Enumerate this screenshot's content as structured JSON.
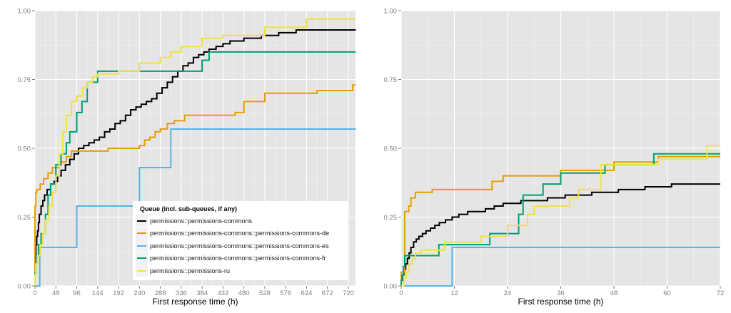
{
  "chart_data": [
    {
      "type": "line",
      "step": true,
      "title": "",
      "xlabel": "First response time (h)",
      "ylabel": "",
      "xlim": [
        0,
        737
      ],
      "ylim": [
        0,
        1
      ],
      "xticks": [
        0,
        48,
        96,
        144,
        192,
        240,
        288,
        336,
        384,
        432,
        480,
        528,
        576,
        624,
        672,
        720
      ],
      "yticks": [
        0,
        0.25,
        0.5,
        0.75,
        1.0
      ],
      "ytick_labels": [
        "0.00",
        "0.25",
        "0.50",
        "0.75",
        "1.00"
      ],
      "grid": true,
      "legend": {
        "position": "bottom-center-inside",
        "title": "Queue (incl. sub-queues, if any)"
      },
      "series": [
        {
          "name": "permissions::permissions-commons",
          "color": "#000000",
          "x": [
            0,
            2,
            4,
            6,
            8,
            10,
            14,
            18,
            22,
            28,
            36,
            44,
            52,
            60,
            70,
            80,
            90,
            100,
            112,
            124,
            136,
            148,
            160,
            172,
            184,
            196,
            208,
            220,
            232,
            244,
            256,
            268,
            280,
            292,
            304,
            316,
            328,
            340,
            352,
            364,
            376,
            388,
            400,
            416,
            432,
            448,
            464,
            480,
            500,
            520,
            540,
            560,
            580,
            600,
            737
          ],
          "values": [
            0.1,
            0.15,
            0.18,
            0.2,
            0.23,
            0.26,
            0.29,
            0.31,
            0.33,
            0.35,
            0.37,
            0.38,
            0.4,
            0.42,
            0.44,
            0.46,
            0.48,
            0.5,
            0.51,
            0.52,
            0.53,
            0.54,
            0.56,
            0.57,
            0.59,
            0.6,
            0.62,
            0.64,
            0.65,
            0.66,
            0.67,
            0.68,
            0.7,
            0.72,
            0.74,
            0.76,
            0.78,
            0.8,
            0.81,
            0.83,
            0.84,
            0.85,
            0.86,
            0.87,
            0.88,
            0.89,
            0.89,
            0.9,
            0.9,
            0.91,
            0.91,
            0.92,
            0.92,
            0.93,
            0.93
          ]
        },
        {
          "name": "permissions::permissions-commons::permissions-commons-de",
          "color": "#E69F00",
          "x": [
            0,
            2,
            4,
            12,
            20,
            30,
            40,
            56,
            72,
            84,
            96,
            168,
            240,
            252,
            264,
            276,
            288,
            304,
            320,
            344,
            460,
            480,
            528,
            648,
            730,
            737
          ],
          "values": [
            0.29,
            0.34,
            0.35,
            0.37,
            0.39,
            0.41,
            0.43,
            0.45,
            0.47,
            0.49,
            0.49,
            0.5,
            0.51,
            0.53,
            0.54,
            0.56,
            0.57,
            0.59,
            0.6,
            0.62,
            0.63,
            0.67,
            0.7,
            0.71,
            0.73,
            0.73
          ]
        },
        {
          "name": "permissions::permissions-commons::permissions-commons-es",
          "color": "#56B4E9",
          "x": [
            0,
            11,
            96,
            240,
            312,
            737
          ],
          "values": [
            0.0,
            0.14,
            0.29,
            0.43,
            0.57,
            0.57
          ]
        },
        {
          "name": "permissions::permissions-commons::permissions-commons-fr",
          "color": "#009E73",
          "x": [
            0,
            2,
            8,
            14,
            24,
            30,
            36,
            48,
            60,
            72,
            80,
            96,
            108,
            120,
            132,
            144,
            336,
            384,
            400,
            737
          ],
          "values": [
            0.05,
            0.11,
            0.15,
            0.19,
            0.26,
            0.33,
            0.37,
            0.44,
            0.48,
            0.52,
            0.56,
            0.63,
            0.67,
            0.74,
            0.74,
            0.78,
            0.78,
            0.82,
            0.85,
            0.85
          ]
        },
        {
          "name": "permissions::permissions-ru",
          "color": "#F0E442",
          "x": [
            0,
            2,
            6,
            12,
            18,
            24,
            32,
            40,
            48,
            56,
            64,
            72,
            84,
            96,
            110,
            120,
            132,
            144,
            192,
            240,
            288,
            312,
            336,
            384,
            432,
            528,
            624,
            737
          ],
          "values": [
            0.04,
            0.08,
            0.11,
            0.15,
            0.19,
            0.24,
            0.29,
            0.34,
            0.4,
            0.48,
            0.56,
            0.62,
            0.67,
            0.69,
            0.72,
            0.74,
            0.76,
            0.77,
            0.78,
            0.81,
            0.83,
            0.85,
            0.87,
            0.9,
            0.91,
            0.94,
            0.97,
            0.97
          ]
        }
      ]
    },
    {
      "type": "line",
      "step": true,
      "title": "",
      "xlabel": "First response time (h)",
      "ylabel": "",
      "xlim": [
        0,
        72
      ],
      "ylim": [
        0,
        1
      ],
      "xticks": [
        0,
        12,
        24,
        36,
        48,
        60,
        72
      ],
      "yticks": [
        0,
        0.25,
        0.5,
        0.75,
        1.0
      ],
      "ytick_labels": [
        "0.00",
        "0.25",
        "0.50",
        "0.75",
        "1.00"
      ],
      "grid": true,
      "legend": null,
      "series": [
        {
          "name": "permissions::permissions-commons",
          "color": "#000000",
          "x": [
            0,
            0.3,
            0.6,
            1,
            1.4,
            1.8,
            2.2,
            2.8,
            3.4,
            4,
            4.8,
            5.6,
            6.6,
            7.6,
            8.6,
            10,
            11.5,
            13,
            15,
            17,
            19,
            21,
            23,
            25,
            27,
            29,
            31,
            33,
            35,
            37,
            39,
            41,
            43,
            45,
            47,
            49,
            51,
            53,
            55,
            57,
            59,
            61,
            63,
            65,
            67,
            72
          ],
          "values": [
            0.02,
            0.04,
            0.06,
            0.08,
            0.1,
            0.12,
            0.14,
            0.16,
            0.17,
            0.18,
            0.19,
            0.2,
            0.21,
            0.22,
            0.23,
            0.24,
            0.25,
            0.26,
            0.27,
            0.27,
            0.28,
            0.29,
            0.3,
            0.3,
            0.31,
            0.31,
            0.31,
            0.32,
            0.32,
            0.33,
            0.33,
            0.33,
            0.34,
            0.34,
            0.34,
            0.35,
            0.35,
            0.35,
            0.36,
            0.36,
            0.36,
            0.37,
            0.37,
            0.37,
            0.37,
            0.37
          ]
        },
        {
          "name": "permissions::permissions-commons::permissions-commons-de",
          "color": "#E69F00",
          "x": [
            0,
            0.8,
            1.7,
            2.2,
            3.2,
            7,
            20.5,
            23,
            28,
            36,
            48,
            58,
            72
          ],
          "values": [
            0.05,
            0.27,
            0.29,
            0.32,
            0.34,
            0.35,
            0.38,
            0.4,
            0.4,
            0.42,
            0.45,
            0.47,
            0.47
          ]
        },
        {
          "name": "permissions::permissions-commons::permissions-commons-es",
          "color": "#56B4E9",
          "x": [
            0,
            11.5,
            72
          ],
          "values": [
            0.0,
            0.14,
            0.14
          ]
        },
        {
          "name": "permissions::permissions-commons::permissions-commons-fr",
          "color": "#009E73",
          "x": [
            0,
            0.2,
            0.5,
            0.8,
            8.5,
            20,
            26.5,
            27.5,
            32,
            36,
            46,
            57,
            72
          ],
          "values": [
            0.02,
            0.04,
            0.07,
            0.11,
            0.15,
            0.19,
            0.26,
            0.33,
            0.37,
            0.41,
            0.44,
            0.48,
            0.48
          ]
        },
        {
          "name": "permissions::permissions-ru",
          "color": "#F0E442",
          "x": [
            0,
            0.6,
            1.2,
            1.8,
            2.5,
            3.2,
            4.5,
            9.8,
            18,
            24,
            28.5,
            30,
            38,
            40,
            45,
            58,
            69,
            72
          ],
          "values": [
            0.0,
            0.03,
            0.05,
            0.08,
            0.1,
            0.12,
            0.13,
            0.16,
            0.18,
            0.22,
            0.26,
            0.29,
            0.32,
            0.35,
            0.44,
            0.46,
            0.51,
            0.51
          ]
        }
      ]
    }
  ]
}
